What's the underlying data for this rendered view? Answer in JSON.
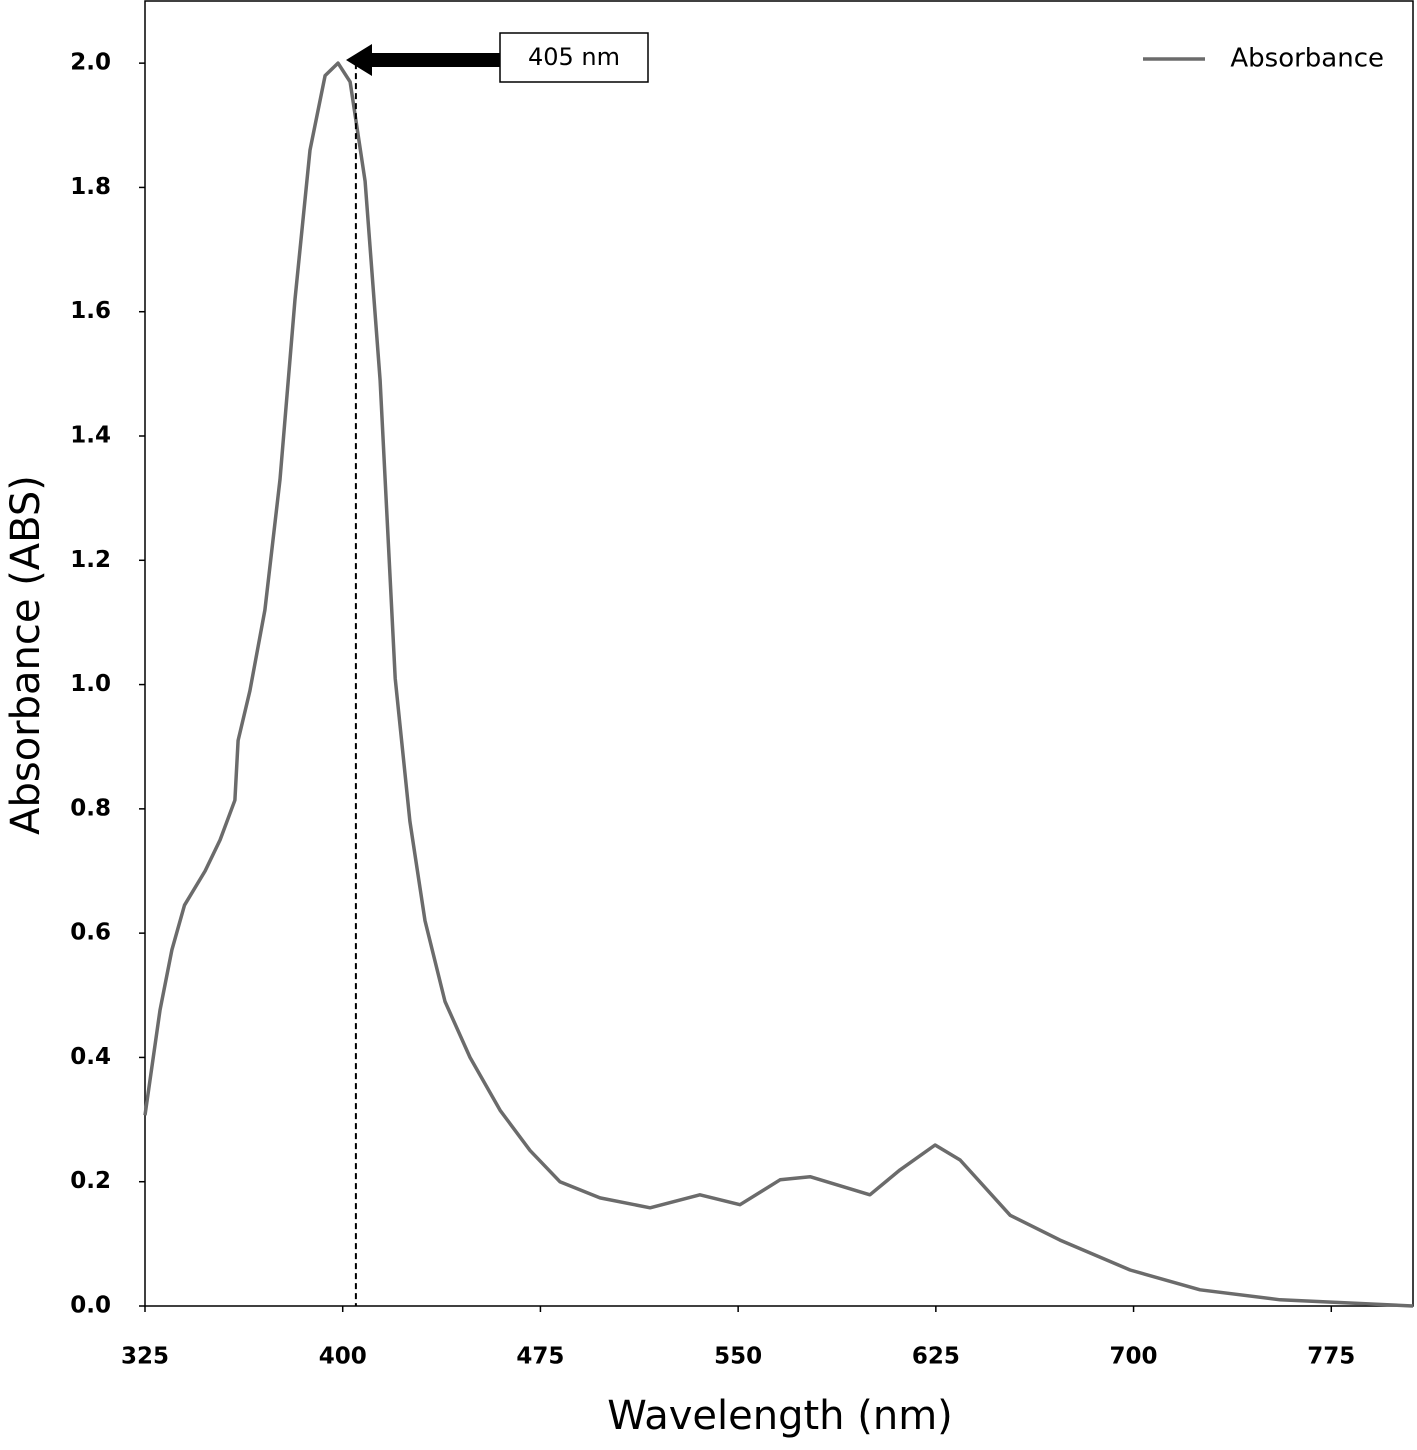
{
  "chart_data": {
    "type": "line",
    "x_label": "Wavelength (nm)",
    "y_label": "Absorbance (ABS)",
    "xlim": [
      325,
      806
    ],
    "ylim": [
      0,
      2.1
    ],
    "xticks": [
      325,
      400,
      475,
      550,
      625,
      700,
      775
    ],
    "yticks": [
      {
        "value": 0,
        "label": "0.0"
      },
      0.2,
      0.4,
      0.6,
      0.8,
      {
        "value": 1,
        "label": "1.0"
      },
      1.2,
      1.4,
      1.6,
      1.8,
      {
        "value": 2,
        "label": "2.0"
      }
    ],
    "legend": "top-right",
    "annotation": {
      "text": "405 nm",
      "x": 405
    },
    "series": [
      {
        "name": "Absorbance",
        "color": "#6b6b6b",
        "x": [
          325,
          330.7,
          335.2,
          340,
          347.8,
          353.5,
          359.1,
          360.3,
          364.8,
          370.5,
          376.2,
          381.9,
          387.6,
          393.3,
          398.2,
          402.8,
          408.5,
          414.2,
          419.9,
          425.5,
          431.2,
          438.8,
          448.3,
          459.7,
          471.1,
          482.4,
          497.6,
          516.6,
          535.5,
          550.7,
          565.9,
          577.3,
          600,
          611.4,
          624.7,
          634.2,
          653.2,
          672.1,
          698.7,
          725.2,
          755.6,
          806
        ],
        "values": [
          0.307,
          0.476,
          0.573,
          0.645,
          0.7,
          0.75,
          0.814,
          0.91,
          0.99,
          1.12,
          1.33,
          1.62,
          1.86,
          1.98,
          2.0,
          1.97,
          1.81,
          1.49,
          1.01,
          0.78,
          0.62,
          0.49,
          0.4,
          0.315,
          0.25,
          0.2,
          0.174,
          0.158,
          0.179,
          0.163,
          0.203,
          0.208,
          0.179,
          0.219,
          0.259,
          0.235,
          0.146,
          0.106,
          0.058,
          0.026,
          0.01,
          0
        ]
      }
    ]
  }
}
